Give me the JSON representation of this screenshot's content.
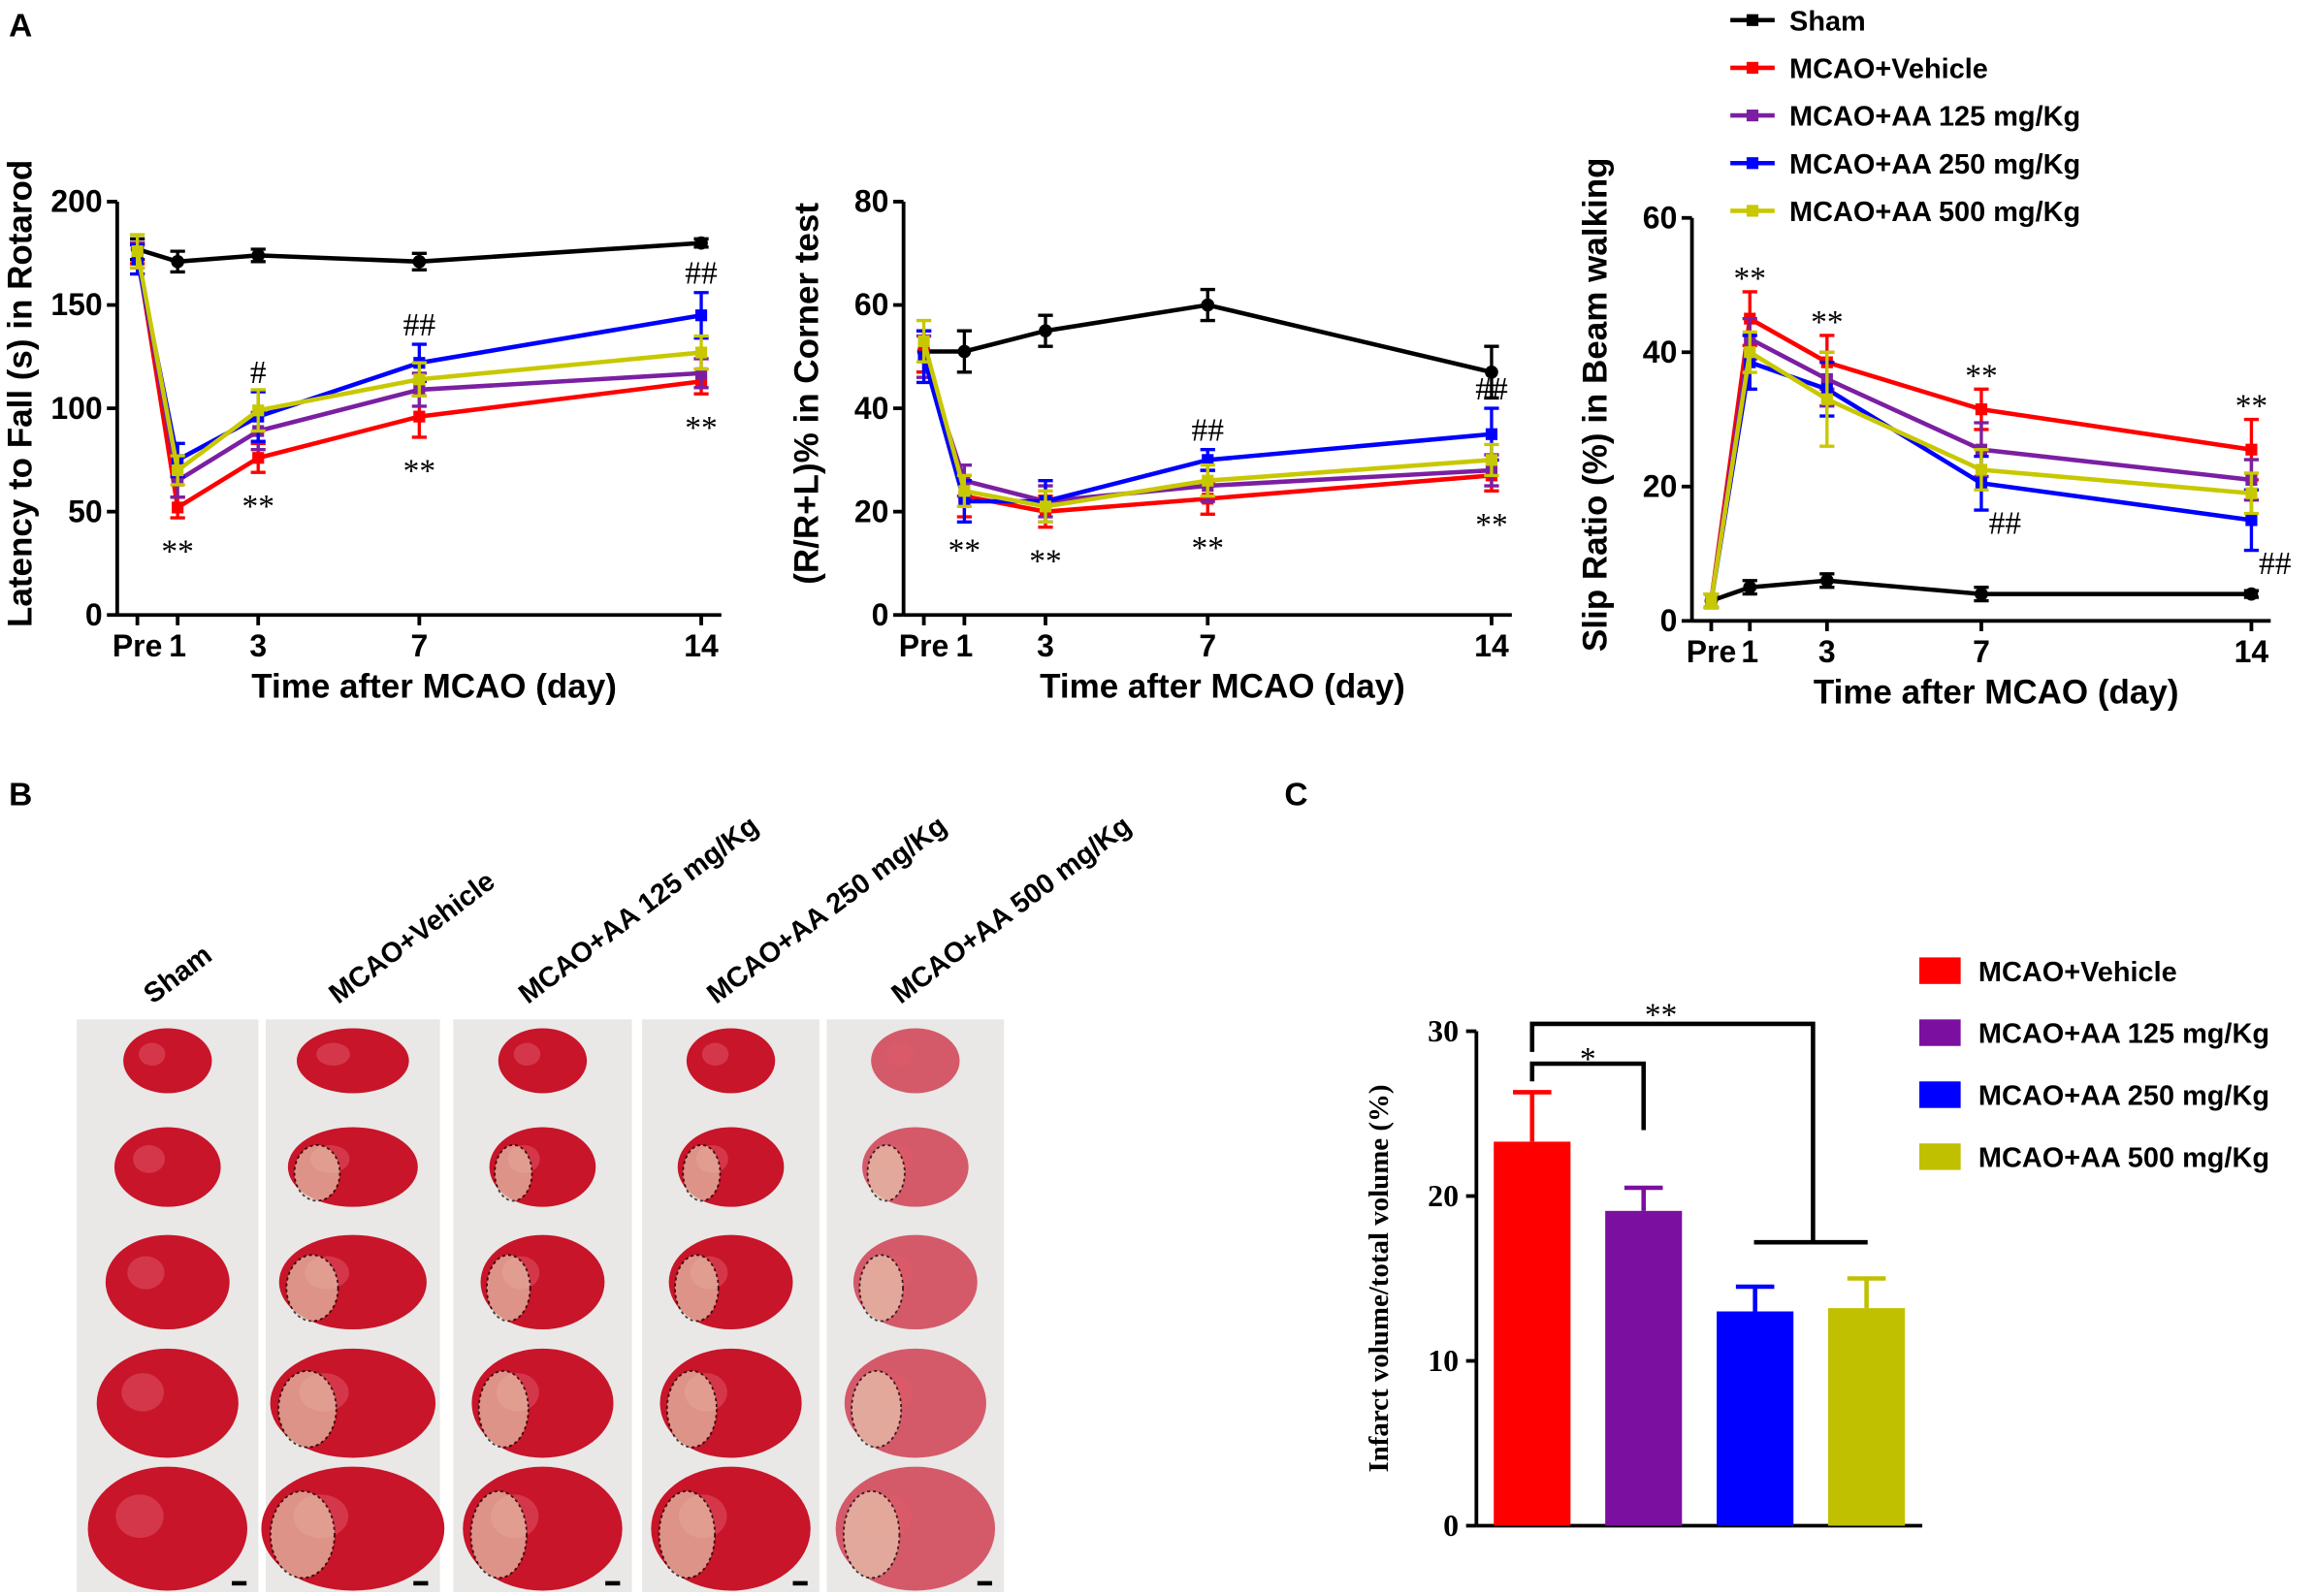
{
  "panel_labels": [
    "A",
    "B",
    "C"
  ],
  "photos": {
    "labels": [
      "Sham",
      "MCAO+Vehicle",
      "MCAO+AA 125 mg/Kg",
      "MCAO+AA 250 mg/Kg",
      "MCAO+AA 500 mg/Kg"
    ]
  },
  "chart_data": [
    {
      "type": "line",
      "ylabel": "Latency to Fall (s) in Rotarod",
      "xlabel": "Time after MCAO (day)",
      "x": [
        0,
        1,
        3,
        7,
        14
      ],
      "xlim": [
        -0.5,
        14.5
      ],
      "xticks": [
        {
          "value": 0,
          "label": "Pre"
        },
        1,
        3,
        7,
        14
      ],
      "ylim": [
        0,
        200
      ],
      "yticks": [
        0,
        50,
        100,
        150,
        200
      ],
      "series": [
        {
          "color": "#000000",
          "values": [
            177,
            171,
            174,
            171,
            180
          ],
          "errors": [
            5,
            5,
            3,
            4,
            2
          ]
        },
        {
          "color": "#ff0000",
          "values": [
            175,
            52,
            76,
            96,
            113
          ],
          "errors": [
            5,
            5,
            7,
            10,
            6
          ]
        },
        {
          "color": "#7b1fa2",
          "values": [
            174,
            65,
            89,
            109,
            117
          ],
          "errors": [
            6,
            8,
            9,
            8,
            7
          ]
        },
        {
          "color": "#0000ff",
          "values": [
            172,
            75,
            96,
            122,
            145
          ],
          "errors": [
            7,
            8,
            12,
            9,
            11
          ]
        },
        {
          "color": "#c8c800",
          "values": [
            176,
            70,
            99,
            114,
            127
          ],
          "errors": [
            8,
            7,
            10,
            8,
            8
          ]
        }
      ],
      "annotations": [
        {
          "text": "**",
          "x": 1,
          "series": 1,
          "side": "below"
        },
        {
          "text": "**",
          "x": 3,
          "series": 1,
          "side": "below"
        },
        {
          "text": "**",
          "x": 7,
          "series": 1,
          "side": "below"
        },
        {
          "text": "**",
          "x": 14,
          "series": 1,
          "side": "below"
        },
        {
          "text": "#",
          "x": 3,
          "series": 3,
          "side": "above"
        },
        {
          "text": "##",
          "x": 7,
          "series": 3,
          "side": "above"
        },
        {
          "text": "##",
          "x": 14,
          "series": 3,
          "side": "above"
        }
      ]
    },
    {
      "type": "line",
      "ylabel": "(R/R+L)% in Corner test",
      "xlabel": "Time after MCAO (day)",
      "x": [
        0,
        1,
        3,
        7,
        14
      ],
      "xlim": [
        -0.5,
        14.5
      ],
      "xticks": [
        {
          "value": 0,
          "label": "Pre"
        },
        1,
        3,
        7,
        14
      ],
      "ylim": [
        0,
        80
      ],
      "yticks": [
        0,
        20,
        40,
        60,
        80
      ],
      "series": [
        {
          "color": "#000000",
          "values": [
            51,
            51,
            55,
            60,
            47
          ],
          "errors": [
            4,
            4,
            3,
            3,
            5
          ]
        },
        {
          "color": "#ff0000",
          "values": [
            51,
            23,
            20,
            22.5,
            27
          ],
          "errors": [
            4,
            4,
            3,
            3,
            3
          ]
        },
        {
          "color": "#7b1fa2",
          "values": [
            50,
            26,
            22,
            25,
            28
          ],
          "errors": [
            4,
            3,
            3,
            3,
            3
          ]
        },
        {
          "color": "#0000ff",
          "values": [
            50,
            22,
            22,
            30,
            35
          ],
          "errors": [
            5,
            4,
            4,
            2,
            5
          ]
        },
        {
          "color": "#c8c800",
          "values": [
            53,
            24,
            21,
            26,
            30
          ],
          "errors": [
            4,
            3,
            3,
            3,
            3
          ]
        }
      ],
      "annotations": [
        {
          "text": "**",
          "x": 1,
          "series": 1,
          "side": "below"
        },
        {
          "text": "**",
          "x": 3,
          "series": 1,
          "side": "below"
        },
        {
          "text": "**",
          "x": 7,
          "series": 1,
          "side": "below"
        },
        {
          "text": "**",
          "x": 14,
          "series": 1,
          "side": "below"
        },
        {
          "text": "##",
          "x": 7,
          "series": 3,
          "side": "above"
        },
        {
          "text": "##",
          "x": 14,
          "series": 3,
          "side": "above"
        }
      ]
    },
    {
      "type": "line",
      "ylabel": "Slip Ratio (%) in Beam walking",
      "xlabel": "Time after MCAO (day)",
      "x": [
        0,
        1,
        3,
        7,
        14
      ],
      "xlim": [
        -0.5,
        14.5
      ],
      "xticks": [
        {
          "value": 0,
          "label": "Pre"
        },
        1,
        3,
        7,
        14
      ],
      "ylim": [
        0,
        60
      ],
      "yticks": [
        0,
        20,
        40,
        60
      ],
      "legend": "top-right",
      "series": [
        {
          "name": "Sham",
          "color": "#000000",
          "values": [
            3,
            5,
            6,
            4,
            4
          ],
          "errors": [
            1,
            1,
            1,
            1,
            0.5
          ]
        },
        {
          "name": "MCAO+Vehicle",
          "color": "#ff0000",
          "values": [
            3,
            45,
            38.5,
            31.5,
            25.5
          ],
          "errors": [
            1,
            4,
            4,
            3,
            4.5
          ]
        },
        {
          "name": "MCAO+AA 125 mg/Kg",
          "color": "#7b1fa2",
          "values": [
            3,
            42,
            36,
            25.5,
            21
          ],
          "errors": [
            1,
            3,
            4,
            4,
            3
          ]
        },
        {
          "name": "MCAO+AA 250 mg/Kg",
          "color": "#0000ff",
          "values": [
            3,
            38.5,
            34.5,
            20.5,
            15
          ],
          "errors": [
            1,
            4,
            4,
            4,
            4.5
          ]
        },
        {
          "name": "MCAO+AA 500 mg/Kg",
          "color": "#c8c800",
          "values": [
            3,
            40,
            33,
            22.5,
            19
          ],
          "errors": [
            1,
            3,
            7,
            3,
            3
          ]
        }
      ],
      "annotations": [
        {
          "text": "**",
          "x": 1,
          "series": 1,
          "side": "above"
        },
        {
          "text": "**",
          "x": 3,
          "series": 1,
          "side": "above"
        },
        {
          "text": "**",
          "x": 7,
          "series": 1,
          "side": "above"
        },
        {
          "text": "**",
          "x": 14,
          "series": 1,
          "side": "above"
        },
        {
          "text": "##",
          "x": 7,
          "series": 3,
          "side": "below"
        },
        {
          "text": "##",
          "x": 14,
          "series": 3,
          "side": "below"
        }
      ]
    },
    {
      "type": "bar",
      "ylabel": "Infarct volume/total volume (%)",
      "legend": "right",
      "categories": [
        "MCAO+Vehicle",
        "MCAO+AA 125 mg/Kg",
        "MCAO+AA 250 mg/Kg",
        "MCAO+AA 500 mg/Kg"
      ],
      "values": [
        23.3,
        19.1,
        13,
        13.2
      ],
      "errors": [
        3,
        1.4,
        1.5,
        1.8
      ],
      "colors": [
        "#ff0000",
        "#7b0fa0",
        "#0000ff",
        "#c0c000"
      ],
      "ylim": [
        0,
        30
      ],
      "yticks": [
        0,
        10,
        20,
        30
      ],
      "annotations": [
        {
          "text": "*"
        },
        {
          "text": "**"
        }
      ]
    }
  ]
}
